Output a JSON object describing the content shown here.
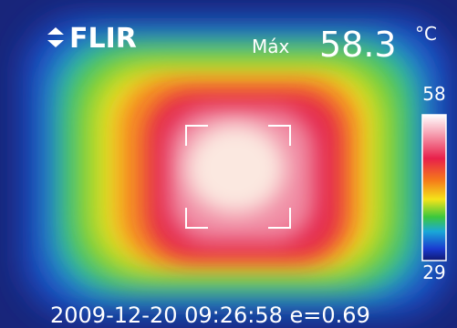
{
  "brand": "FLIR",
  "header": {
    "max_label": "Máx",
    "max_value": "58.3",
    "unit": "°C"
  },
  "scale": {
    "max": "58",
    "min": "29"
  },
  "footer": "2009-12-20 09:26:58 e=0.69"
}
